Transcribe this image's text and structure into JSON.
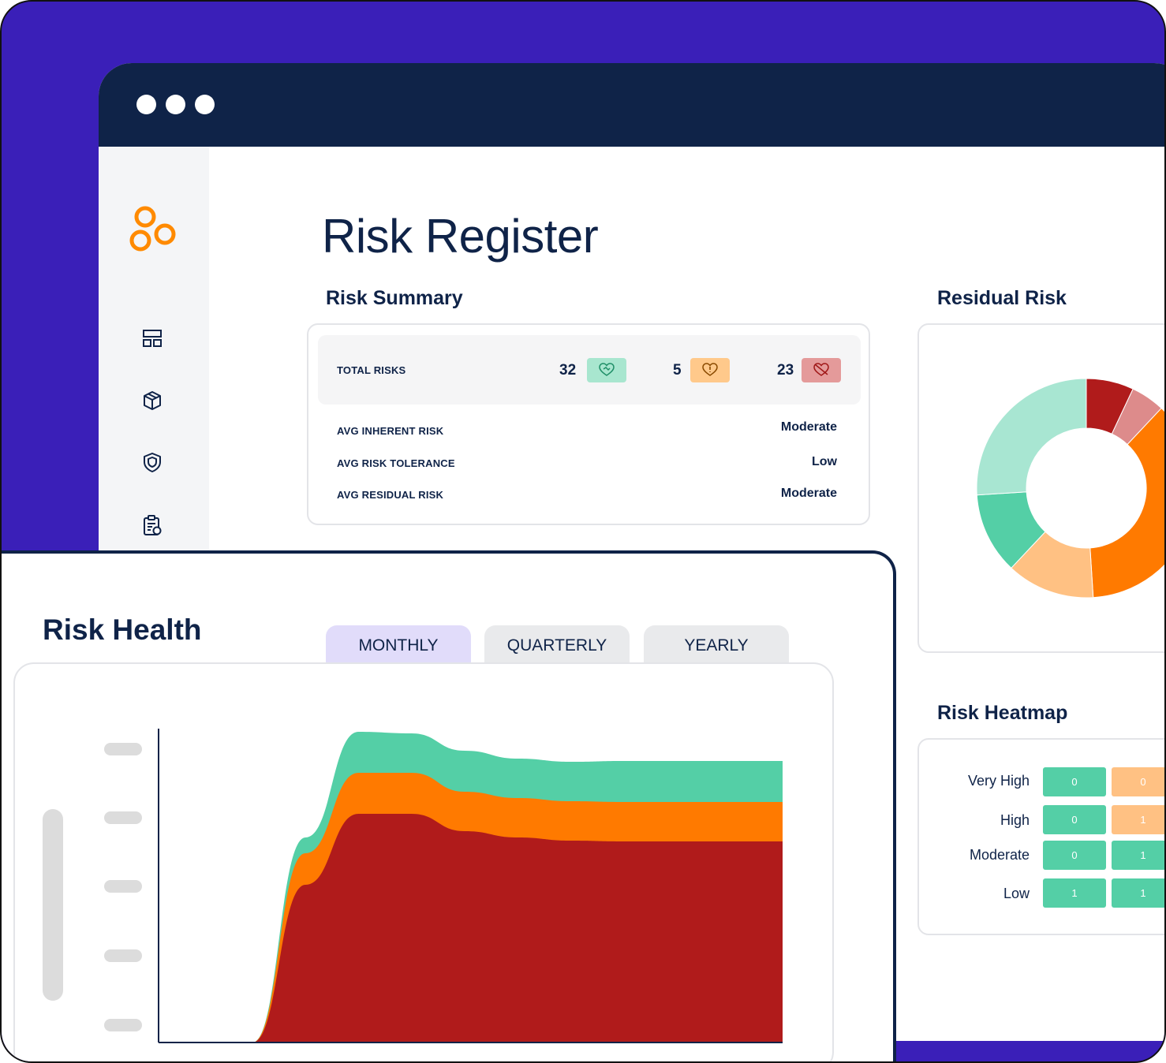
{
  "page_title": "Risk Register",
  "sections": {
    "risk_summary": "Risk Summary",
    "residual_risk": "Residual Risk",
    "risk_heatmap": "Risk Heatmap",
    "risk_health": "Risk Health"
  },
  "summary": {
    "total_label": "TOTAL RISKS",
    "counts": [
      {
        "value": "32",
        "icon": "heart-handshake-icon",
        "color": "#a8e6cf"
      },
      {
        "value": "5",
        "icon": "heart-alert-icon",
        "color": "#ffc98b"
      },
      {
        "value": "23",
        "icon": "heart-broken-icon",
        "color": "#e49a9a"
      }
    ],
    "rows": [
      {
        "label": "AVG INHERENT RISK",
        "value": "Moderate"
      },
      {
        "label": "AVG RISK TOLERANCE",
        "value": "Low"
      },
      {
        "label": "AVG RESIDUAL RISK",
        "value": "Moderate"
      }
    ]
  },
  "residual_donut": {
    "slices": [
      {
        "color": "#b01b1b",
        "value": 7
      },
      {
        "color": "#dd8b8b",
        "value": 5
      },
      {
        "color": "#ff7a00",
        "value": 37
      },
      {
        "color": "#ffc183",
        "value": 13
      },
      {
        "color": "#54cfa6",
        "value": 12
      },
      {
        "color": "#a8e6d2",
        "value": 26
      }
    ]
  },
  "heatmap": {
    "rows": [
      {
        "label": "Very High",
        "cells": [
          {
            "v": "0",
            "c": "#54cfa6"
          },
          {
            "v": "0",
            "c": "#ffc183"
          }
        ]
      },
      {
        "label": "High",
        "cells": [
          {
            "v": "0",
            "c": "#54cfa6"
          },
          {
            "v": "1",
            "c": "#ffc183"
          }
        ]
      },
      {
        "label": "Moderate",
        "cells": [
          {
            "v": "0",
            "c": "#54cfa6"
          },
          {
            "v": "1",
            "c": "#54cfa6"
          }
        ]
      },
      {
        "label": "Low",
        "cells": [
          {
            "v": "1",
            "c": "#54cfa6"
          },
          {
            "v": "1",
            "c": "#54cfa6"
          }
        ]
      }
    ]
  },
  "tabs": [
    "MONTHLY",
    "QUARTERLY",
    "YEARLY"
  ],
  "colors": {
    "frame": "#3a1fb8",
    "navy": "#0f2348",
    "orange_logo": "#ff8a00",
    "green": "#54cfa6",
    "orange": "#ff7a00",
    "red": "#b01b1b"
  },
  "chart_data": {
    "type": "area",
    "x": [
      0,
      1,
      2,
      3,
      4,
      5,
      6,
      7,
      8,
      9,
      10
    ],
    "series": [
      {
        "color": "#b01b1b",
        "values": [
          0,
          200,
          290,
          290,
          268,
          260,
          256,
          255,
          255,
          255,
          255
        ]
      },
      {
        "color": "#ff7a00",
        "values": [
          0,
          40,
          52,
          52,
          50,
          50,
          50,
          50,
          50,
          50,
          50
        ]
      },
      {
        "color": "#54cfa6",
        "values": [
          0,
          20,
          52,
          50,
          52,
          50,
          50,
          52,
          52,
          52,
          52
        ]
      }
    ],
    "stacked": true,
    "grid": false
  }
}
